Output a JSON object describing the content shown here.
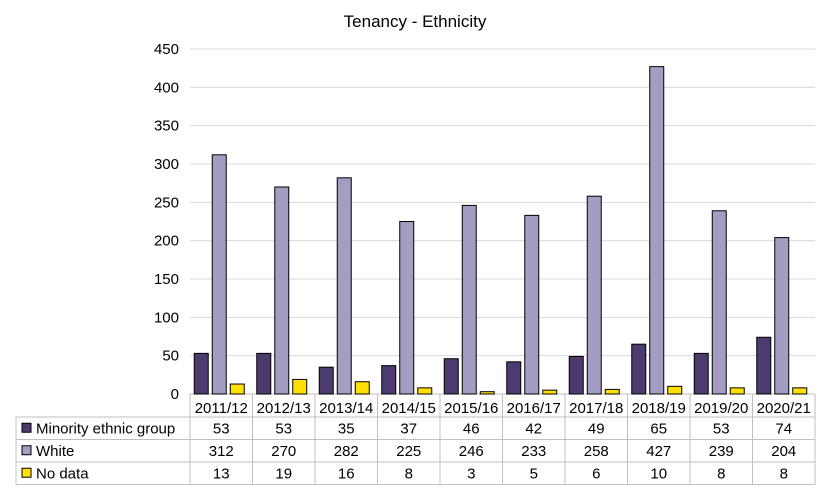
{
  "chart_data": {
    "type": "bar",
    "title": "Tenancy - Ethnicity",
    "xlabel": "",
    "ylabel": "",
    "ylim": [
      0,
      450
    ],
    "yticks": [
      0,
      50,
      100,
      150,
      200,
      250,
      300,
      350,
      400,
      450
    ],
    "grid": true,
    "legend": "bottom-left data table",
    "categories": [
      "2011/12",
      "2012/13",
      "2013/14",
      "2014/15",
      "2015/16",
      "2016/17",
      "2017/18",
      "2018/19",
      "2019/20",
      "2020/21"
    ],
    "series": [
      {
        "name": "Minority ethnic group",
        "color": "#4b3b6e",
        "values": [
          53,
          53,
          35,
          37,
          46,
          42,
          49,
          65,
          53,
          74
        ]
      },
      {
        "name": "White",
        "color": "#a49dc3",
        "values": [
          312,
          270,
          282,
          225,
          246,
          233,
          258,
          427,
          239,
          204
        ]
      },
      {
        "name": "No data",
        "color": "#ffe000",
        "values": [
          13,
          19,
          16,
          8,
          3,
          5,
          6,
          10,
          8,
          8
        ]
      }
    ]
  }
}
